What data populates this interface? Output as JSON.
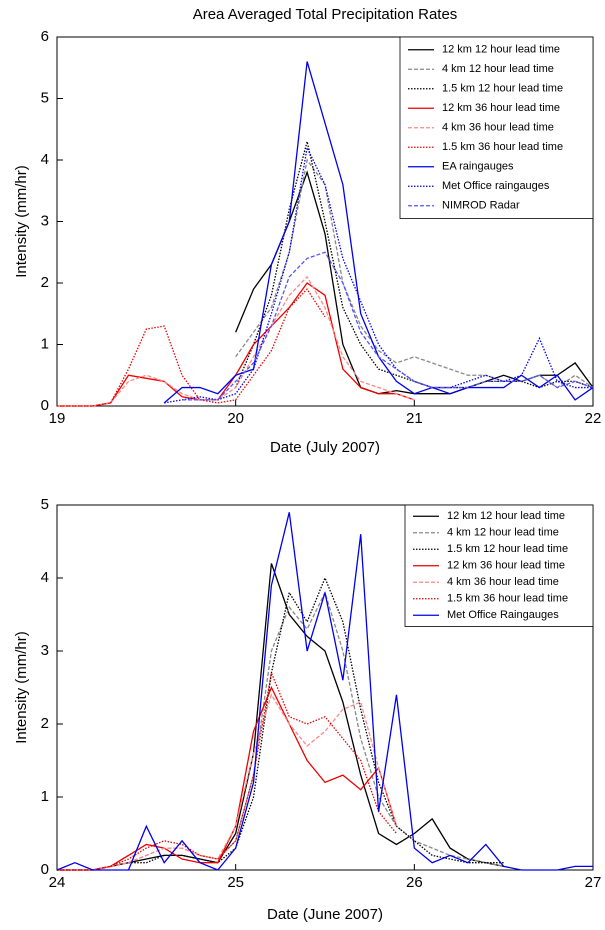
{
  "chart_data": [
    {
      "type": "line",
      "title": "Area Averaged Total Precipitation Rates",
      "x_label": "Date (July 2007)",
      "y_label": "Intensity (mm/hr)",
      "x": [
        19.0,
        19.1,
        19.2,
        19.3,
        19.4,
        19.5,
        19.6,
        19.7,
        19.8,
        19.9,
        20.0,
        20.1,
        20.2,
        20.3,
        20.4,
        20.5,
        20.6,
        20.7,
        20.8,
        20.9,
        21.0,
        21.1,
        21.2,
        21.3,
        21.4,
        21.5,
        21.6,
        21.7,
        21.8,
        21.9,
        22.0
      ],
      "xlim": [
        19,
        22
      ],
      "xticks": [
        19,
        20,
        21,
        22
      ],
      "ylim": [
        0,
        6
      ],
      "yticks": [
        0,
        1,
        2,
        3,
        4,
        5,
        6
      ],
      "legend": "upper right",
      "series": [
        {
          "name": "12 km 12 hour lead time",
          "color": "#000000",
          "dash": "solid",
          "values": [
            null,
            null,
            null,
            null,
            null,
            null,
            null,
            null,
            null,
            null,
            1.2,
            1.9,
            2.3,
            3.0,
            3.8,
            2.8,
            1.0,
            0.3,
            0.2,
            0.25,
            0.2,
            0.2,
            0.2,
            0.3,
            0.4,
            0.5,
            0.4,
            0.5,
            0.5,
            0.7,
            0.3
          ]
        },
        {
          "name": "4 km 12 hour lead time",
          "color": "#888888",
          "dash": "dashed",
          "values": [
            null,
            null,
            null,
            null,
            null,
            null,
            null,
            null,
            null,
            null,
            0.8,
            1.2,
            1.6,
            2.5,
            4.0,
            3.6,
            2.0,
            1.3,
            0.9,
            0.7,
            0.8,
            0.7,
            0.6,
            0.5,
            0.5,
            0.4,
            0.4,
            0.5,
            0.3,
            0.5,
            0.3
          ]
        },
        {
          "name": "1.5 km 12 hour lead time",
          "color": "#000000",
          "dash": "dotted",
          "values": [
            null,
            null,
            null,
            null,
            null,
            null,
            null,
            null,
            null,
            null,
            0.3,
            1.0,
            1.8,
            3.2,
            4.3,
            3.0,
            1.6,
            1.0,
            0.6,
            0.5,
            0.4,
            0.3,
            0.3,
            0.3,
            0.4,
            0.4,
            0.4,
            0.3,
            0.4,
            0.4,
            0.3
          ]
        },
        {
          "name": "12 km 36 hour lead time",
          "color": "#ee0000",
          "dash": "solid",
          "values": [
            0,
            0,
            0,
            0.05,
            0.5,
            0.45,
            0.4,
            0.15,
            0.1,
            0.1,
            0.5,
            1.0,
            1.3,
            1.6,
            2.0,
            1.8,
            0.6,
            0.3,
            0.2,
            0.2,
            0.1,
            null,
            null,
            null,
            null,
            null,
            null,
            null,
            null,
            null,
            null
          ]
        },
        {
          "name": "4 km 36 hour lead time",
          "color": "#ff8888",
          "dash": "dashed",
          "values": [
            0,
            0,
            0,
            0.05,
            0.4,
            0.5,
            0.4,
            0.2,
            0.1,
            0.1,
            0.3,
            0.8,
            1.3,
            1.8,
            2.1,
            1.6,
            0.8,
            0.4,
            0.3,
            0.2,
            0.1,
            null,
            null,
            null,
            null,
            null,
            null,
            null,
            null,
            null,
            null
          ]
        },
        {
          "name": "1.5 km 36 hour lead time",
          "color": "#ee0000",
          "dash": "dotted",
          "values": [
            0,
            0,
            0,
            0.05,
            0.6,
            1.25,
            1.3,
            0.5,
            0.1,
            0.05,
            0.1,
            0.5,
            0.9,
            1.6,
            1.9,
            1.45,
            null,
            null,
            null,
            null,
            null,
            null,
            null,
            null,
            null,
            null,
            null,
            null,
            null,
            null,
            null
          ]
        },
        {
          "name": "EA raingauges",
          "color": "#0000ee",
          "dash": "solid",
          "values": [
            null,
            null,
            null,
            null,
            null,
            null,
            0.05,
            0.3,
            0.3,
            0.2,
            0.5,
            0.6,
            2.3,
            3.0,
            5.6,
            4.6,
            3.6,
            1.5,
            0.8,
            0.4,
            0.2,
            0.3,
            0.2,
            0.3,
            0.3,
            0.3,
            0.5,
            0.3,
            0.5,
            0.1,
            0.3
          ]
        },
        {
          "name": "Met Office raingauges",
          "color": "#0000ee",
          "dash": "dotted",
          "values": [
            null,
            null,
            null,
            null,
            null,
            null,
            0.05,
            0.1,
            0.15,
            0.1,
            0.2,
            0.6,
            1.5,
            2.5,
            4.2,
            3.6,
            2.4,
            1.7,
            1.0,
            0.6,
            0.4,
            0.3,
            0.3,
            0.4,
            0.5,
            0.4,
            0.5,
            1.1,
            0.4,
            0.3,
            0.3
          ]
        },
        {
          "name": "NIMROD Radar",
          "color": "#5555ff",
          "dash": "dashed",
          "values": [
            null,
            null,
            null,
            null,
            null,
            null,
            null,
            0.1,
            0.1,
            0.1,
            0.4,
            0.7,
            1.3,
            2.1,
            2.4,
            2.5,
            2.0,
            1.2,
            0.8,
            0.6,
            0.4,
            0.3,
            0.3,
            0.3,
            0.4,
            0.4,
            0.4,
            0.5,
            0.3,
            0.4,
            0.3
          ]
        }
      ]
    },
    {
      "type": "line",
      "x_label": "Date (June 2007)",
      "y_label": "Intensity (mm/hr)",
      "x": [
        24.0,
        24.1,
        24.2,
        24.3,
        24.4,
        24.5,
        24.6,
        24.7,
        24.8,
        24.9,
        25.0,
        25.1,
        25.2,
        25.3,
        25.4,
        25.5,
        25.6,
        25.7,
        25.8,
        25.9,
        26.0,
        26.1,
        26.2,
        26.3,
        26.4,
        26.5,
        26.6,
        26.7,
        26.8,
        26.9,
        27.0
      ],
      "xlim": [
        24,
        27
      ],
      "xticks": [
        24,
        25,
        26,
        27
      ],
      "ylim": [
        0,
        5
      ],
      "yticks": [
        0,
        1,
        2,
        3,
        4,
        5
      ],
      "legend": "upper right",
      "series": [
        {
          "name": "12 km 12 hour lead time",
          "color": "#000000",
          "dash": "solid",
          "values": [
            0,
            0,
            0,
            0.05,
            0.1,
            0.15,
            0.2,
            0.2,
            0.15,
            0.1,
            0.5,
            1.6,
            4.2,
            3.5,
            3.2,
            3.0,
            2.3,
            1.3,
            0.5,
            0.35,
            0.5,
            0.7,
            0.3,
            0.15,
            0.1,
            0.05,
            null,
            null,
            null,
            null,
            null
          ]
        },
        {
          "name": "4 km 12 hour lead time",
          "color": "#888888",
          "dash": "dashed",
          "values": [
            0,
            0,
            0,
            0.05,
            0.1,
            0.2,
            0.3,
            0.3,
            0.2,
            0.15,
            0.4,
            1.3,
            3.0,
            3.6,
            3.3,
            3.8,
            3.0,
            1.8,
            1.0,
            0.6,
            0.4,
            0.3,
            0.2,
            0.15,
            0.1,
            0.05,
            null,
            null,
            null,
            null,
            null
          ]
        },
        {
          "name": "1.5 km 12 hour lead time",
          "color": "#000000",
          "dash": "dotted",
          "values": [
            0,
            0,
            0,
            0.05,
            0.1,
            0.1,
            0.2,
            0.2,
            0.15,
            0.1,
            0.3,
            1.0,
            2.7,
            3.8,
            3.4,
            4.0,
            3.4,
            2.2,
            1.2,
            0.6,
            0.4,
            0.2,
            0.15,
            0.1,
            0.1,
            0.1,
            null,
            null,
            null,
            null,
            null
          ]
        },
        {
          "name": "12 km 36 hour lead time",
          "color": "#ee0000",
          "dash": "solid",
          "values": [
            0,
            0,
            0,
            0.05,
            0.2,
            0.35,
            0.3,
            0.15,
            0.1,
            0.1,
            0.6,
            1.9,
            2.5,
            2.0,
            1.5,
            1.2,
            1.3,
            1.1,
            1.4,
            0.6,
            null,
            null,
            null,
            null,
            null,
            null,
            null,
            null,
            null,
            null,
            null
          ]
        },
        {
          "name": "4 km 36 hour lead time",
          "color": "#ff8888",
          "dash": "dashed",
          "values": [
            0,
            0,
            0,
            0.05,
            0.1,
            0.2,
            0.3,
            0.3,
            0.2,
            0.15,
            0.6,
            1.6,
            2.4,
            2.0,
            1.7,
            1.9,
            2.2,
            2.3,
            1.4,
            0.6,
            null,
            null,
            null,
            null,
            null,
            null,
            null,
            null,
            null,
            null,
            null
          ]
        },
        {
          "name": "1.5 km 36 hour lead time",
          "color": "#ee0000",
          "dash": "dotted",
          "values": [
            0,
            0,
            0,
            0.05,
            0.15,
            0.3,
            0.4,
            0.35,
            0.2,
            0.15,
            0.4,
            1.3,
            2.7,
            2.1,
            2.0,
            2.1,
            1.8,
            1.5,
            0.8,
            0.5,
            null,
            null,
            null,
            null,
            null,
            null,
            null,
            null,
            null,
            null,
            null
          ]
        },
        {
          "name": "Met Office Raingauges",
          "color": "#0000ee",
          "dash": "solid",
          "values": [
            0,
            0.1,
            0,
            0,
            0,
            0.6,
            0.1,
            0.4,
            0.1,
            0,
            0.3,
            1.2,
            3.9,
            4.9,
            3.0,
            3.8,
            2.6,
            4.6,
            0.8,
            2.4,
            0.3,
            0.1,
            0.2,
            0.1,
            0.35,
            0.05,
            0,
            0,
            0,
            0.05,
            0.05
          ]
        }
      ]
    }
  ]
}
